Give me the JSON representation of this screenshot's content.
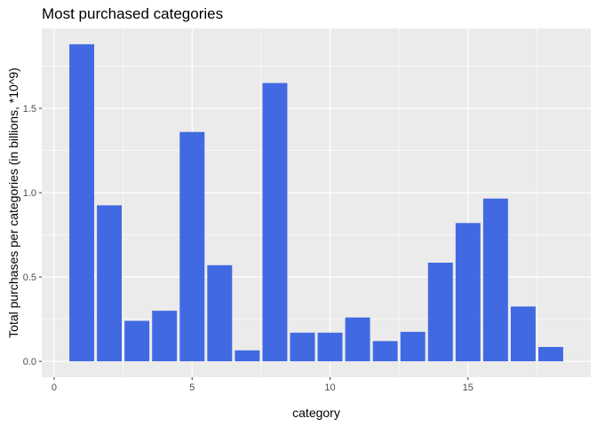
{
  "chart_data": {
    "type": "bar",
    "title": "Most purchased categories",
    "xlabel": "category",
    "ylabel": "Total purchases per categories (in billions, *10^9)",
    "x": [
      1,
      2,
      3,
      4,
      5,
      6,
      7,
      8,
      9,
      10,
      11,
      12,
      13,
      14,
      15,
      16,
      17,
      18
    ],
    "values": [
      1.88,
      0.925,
      0.24,
      0.3,
      1.36,
      0.57,
      0.065,
      1.65,
      0.17,
      0.17,
      0.26,
      0.12,
      0.175,
      0.585,
      0.82,
      0.965,
      0.325,
      0.085
    ],
    "xlim": [
      -0.45,
      19.45
    ],
    "ylim": [
      -0.094,
      1.974
    ],
    "xticks": [
      0,
      5,
      10,
      15
    ],
    "xtick_labels": [
      "0",
      "5",
      "10",
      "15"
    ],
    "yticks": [
      0.0,
      0.5,
      1.0,
      1.5
    ],
    "ytick_labels": [
      "0.0",
      "0.5",
      "1.0",
      "1.5"
    ],
    "grid": true,
    "bar_color": "#4169E1",
    "panel_color": "#EBEBEB",
    "grid_color": "#FFFFFF"
  }
}
